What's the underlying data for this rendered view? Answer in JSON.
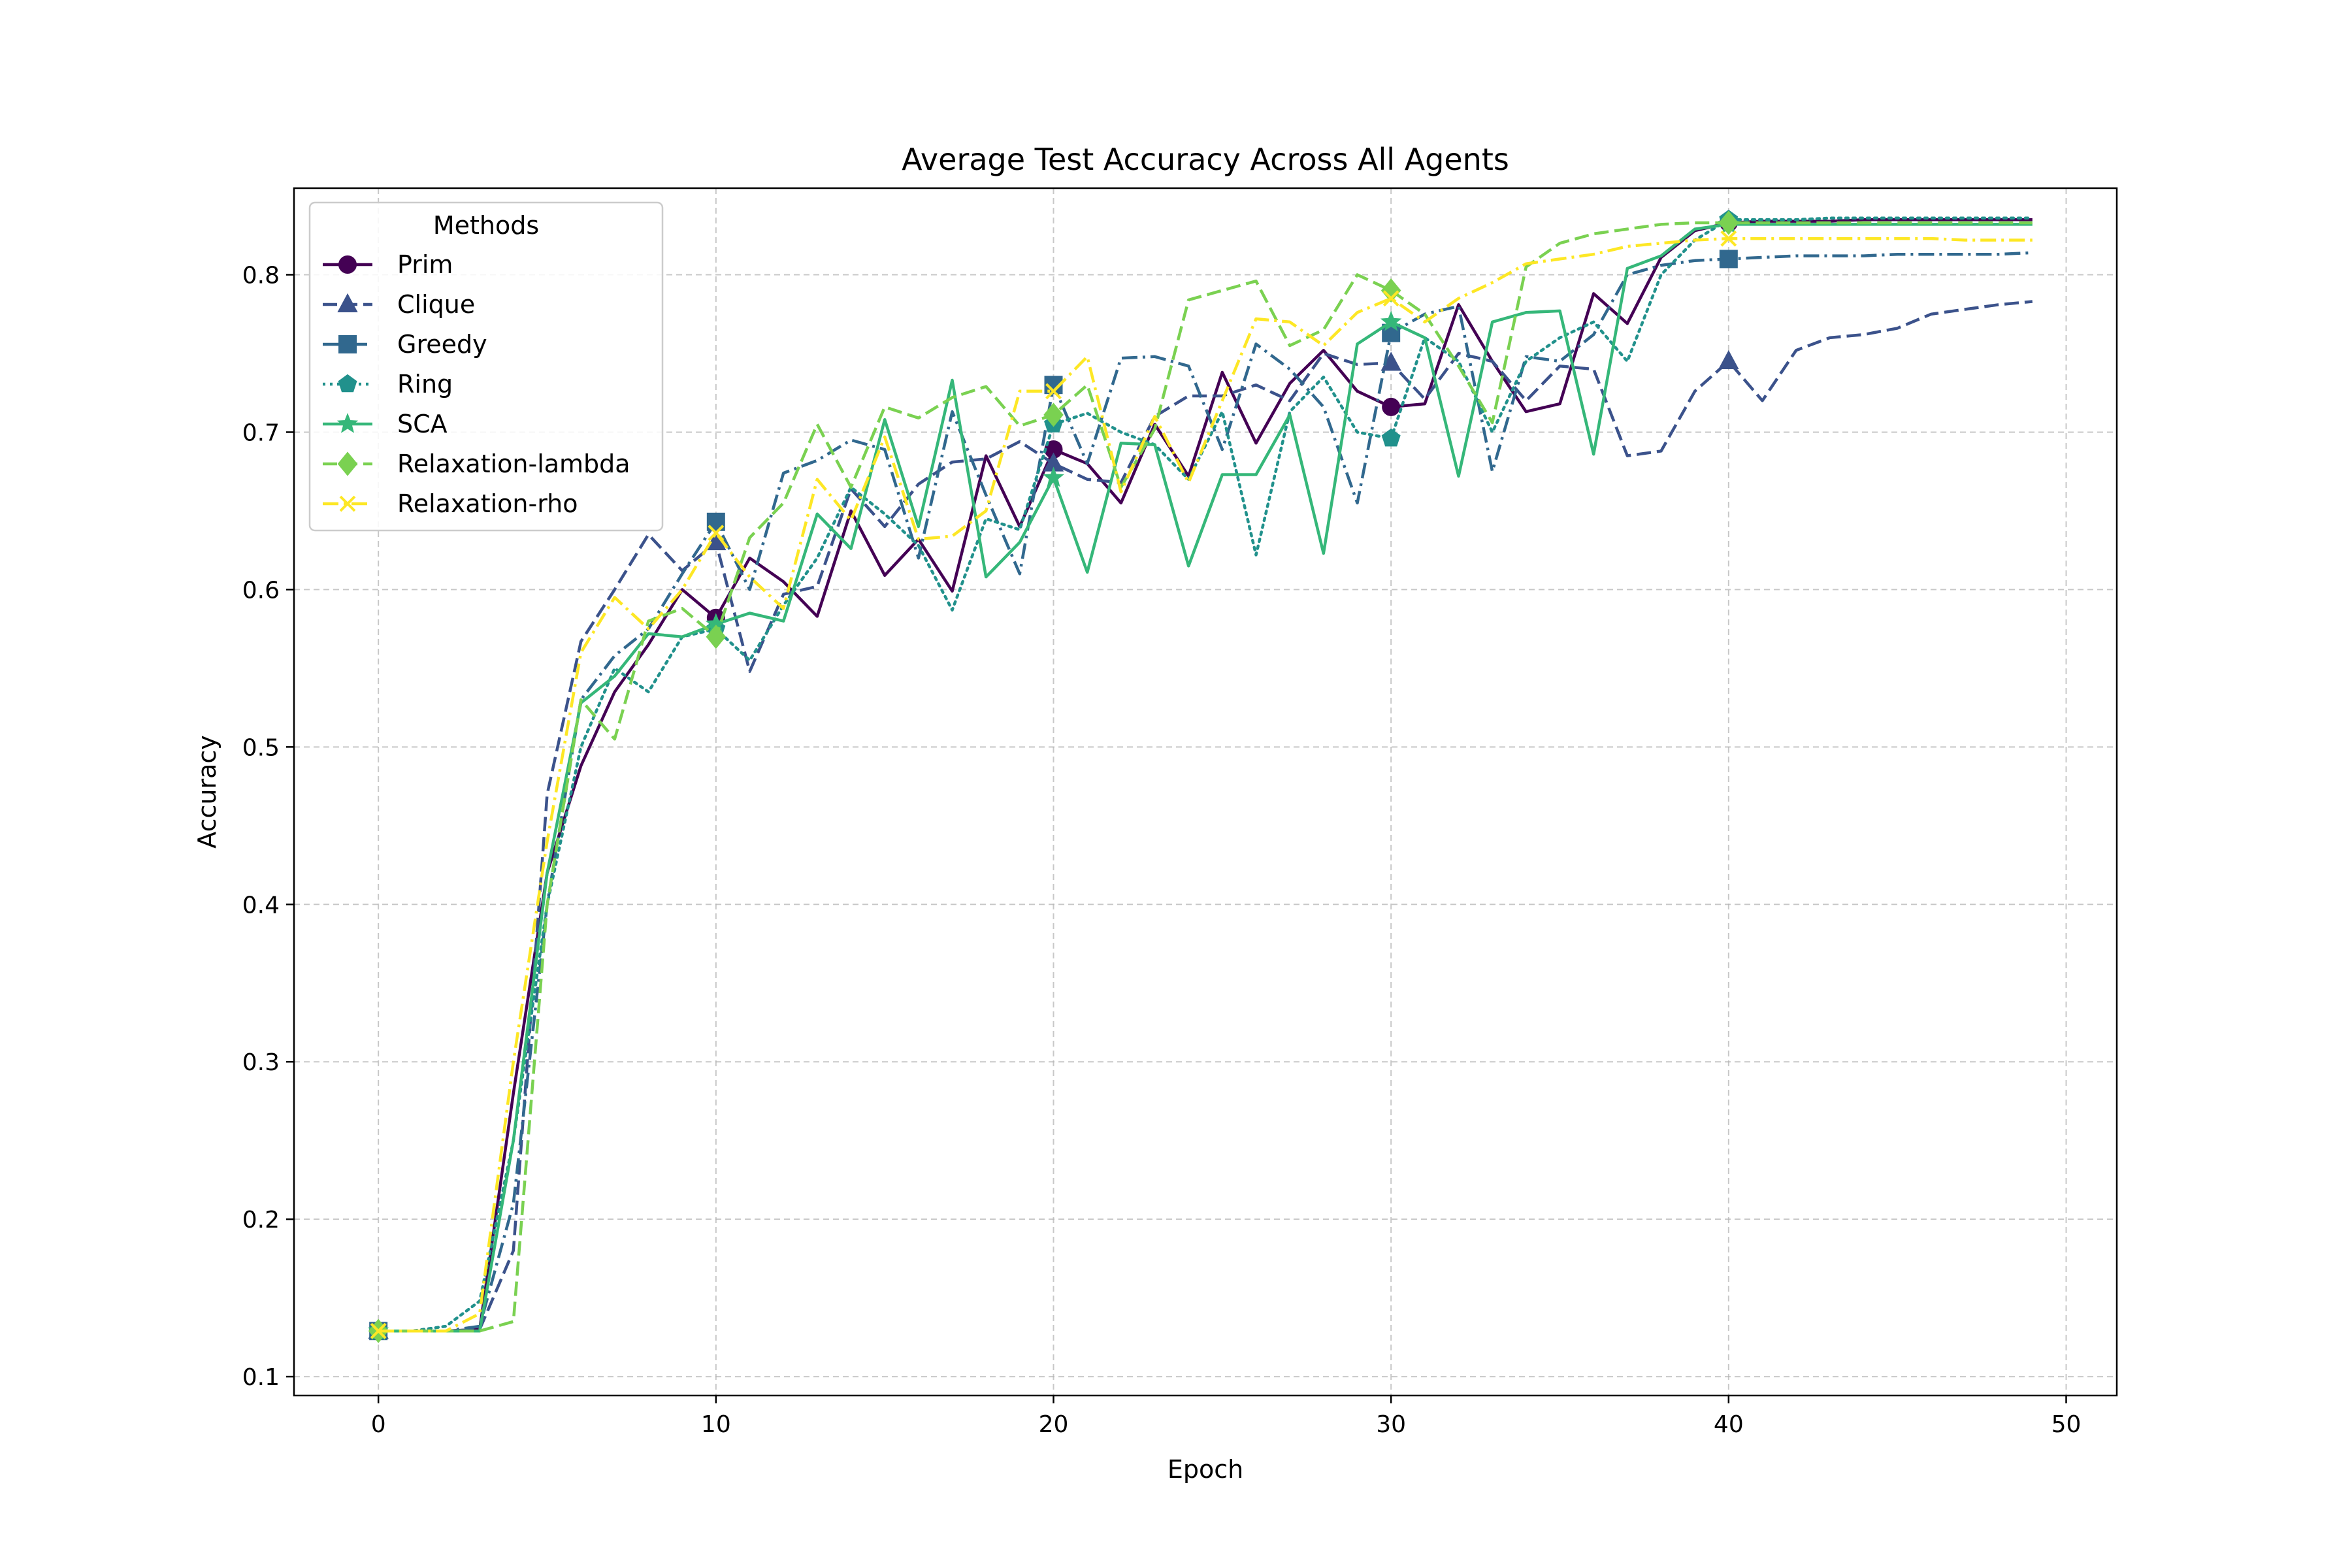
{
  "chart_data": {
    "type": "line",
    "title": "Average Test Accuracy Across All Agents",
    "xlabel": "Epoch",
    "ylabel": "Accuracy",
    "xlim": [
      -2.5,
      51.5
    ],
    "ylim": [
      0.088,
      0.855
    ],
    "xticks": [
      0,
      10,
      20,
      30,
      40,
      50
    ],
    "yticks": [
      0.1,
      0.2,
      0.3,
      0.4,
      0.5,
      0.6,
      0.7,
      0.8
    ],
    "grid": true,
    "legend": {
      "title": "Methods",
      "position": "top-left"
    },
    "x": [
      0,
      1,
      2,
      3,
      4,
      5,
      6,
      7,
      8,
      9,
      10,
      11,
      12,
      13,
      14,
      15,
      16,
      17,
      18,
      19,
      20,
      21,
      22,
      23,
      24,
      25,
      26,
      27,
      28,
      29,
      30,
      31,
      32,
      33,
      34,
      35,
      36,
      37,
      38,
      39,
      40,
      41,
      42,
      43,
      44,
      45,
      46,
      47,
      48,
      49
    ],
    "marker_every": 10,
    "series": [
      {
        "name": "Prim",
        "color": "#440154",
        "dash": "solid",
        "marker": "circle",
        "values": [
          0.129,
          0.129,
          0.129,
          0.13,
          0.28,
          0.42,
          0.488,
          0.535,
          0.565,
          0.6,
          0.582,
          0.62,
          0.605,
          0.583,
          0.65,
          0.609,
          0.632,
          0.599,
          0.685,
          0.64,
          0.689,
          0.68,
          0.655,
          0.705,
          0.672,
          0.738,
          0.693,
          0.731,
          0.752,
          0.726,
          0.716,
          0.718,
          0.781,
          0.745,
          0.713,
          0.718,
          0.788,
          0.769,
          0.811,
          0.828,
          0.833,
          0.834,
          0.834,
          0.834,
          0.835,
          0.835,
          0.835,
          0.835,
          0.835,
          0.835
        ]
      },
      {
        "name": "Clique",
        "color": "#3b528b",
        "dash": "dashed",
        "marker": "triangle",
        "values": [
          0.129,
          0.129,
          0.129,
          0.13,
          0.18,
          0.47,
          0.567,
          0.6,
          0.635,
          0.612,
          0.63,
          0.548,
          0.597,
          0.602,
          0.664,
          0.64,
          0.667,
          0.681,
          0.683,
          0.694,
          0.68,
          0.67,
          0.668,
          0.71,
          0.723,
          0.723,
          0.73,
          0.72,
          0.75,
          0.743,
          0.744,
          0.721,
          0.75,
          0.745,
          0.72,
          0.742,
          0.74,
          0.685,
          0.688,
          0.726,
          0.745,
          0.72,
          0.752,
          0.76,
          0.762,
          0.766,
          0.775,
          0.778,
          0.781,
          0.783
        ]
      },
      {
        "name": "Greedy",
        "color": "#31688e",
        "dash": "dashdot",
        "marker": "square",
        "values": [
          0.129,
          0.129,
          0.129,
          0.132,
          0.21,
          0.4,
          0.53,
          0.558,
          0.575,
          0.61,
          0.643,
          0.6,
          0.674,
          0.682,
          0.695,
          0.689,
          0.62,
          0.713,
          0.66,
          0.61,
          0.73,
          0.68,
          0.747,
          0.748,
          0.742,
          0.689,
          0.756,
          0.74,
          0.716,
          0.655,
          0.763,
          0.775,
          0.78,
          0.675,
          0.748,
          0.745,
          0.762,
          0.8,
          0.806,
          0.809,
          0.81,
          0.811,
          0.812,
          0.812,
          0.812,
          0.813,
          0.813,
          0.813,
          0.813,
          0.814
        ]
      },
      {
        "name": "Ring",
        "color": "#21918c",
        "dash": "dotted",
        "marker": "pentagon",
        "values": [
          0.129,
          0.129,
          0.132,
          0.148,
          0.25,
          0.4,
          0.5,
          0.55,
          0.535,
          0.57,
          0.575,
          0.555,
          0.59,
          0.62,
          0.665,
          0.648,
          0.628,
          0.587,
          0.645,
          0.638,
          0.705,
          0.712,
          0.7,
          0.692,
          0.67,
          0.713,
          0.622,
          0.713,
          0.735,
          0.7,
          0.696,
          0.76,
          0.745,
          0.7,
          0.745,
          0.76,
          0.77,
          0.745,
          0.8,
          0.822,
          0.835,
          0.835,
          0.835,
          0.836,
          0.836,
          0.836,
          0.836,
          0.836,
          0.836,
          0.836
        ]
      },
      {
        "name": "SCA",
        "color": "#35b779",
        "dash": "solid",
        "marker": "star",
        "values": [
          0.129,
          0.129,
          0.129,
          0.129,
          0.25,
          0.42,
          0.528,
          0.545,
          0.572,
          0.57,
          0.578,
          0.585,
          0.58,
          0.648,
          0.626,
          0.708,
          0.64,
          0.733,
          0.608,
          0.63,
          0.671,
          0.611,
          0.693,
          0.692,
          0.615,
          0.673,
          0.673,
          0.711,
          0.623,
          0.756,
          0.77,
          0.76,
          0.672,
          0.77,
          0.776,
          0.777,
          0.686,
          0.804,
          0.812,
          0.829,
          0.832,
          0.832,
          0.832,
          0.832,
          0.832,
          0.832,
          0.832,
          0.832,
          0.832,
          0.832
        ]
      },
      {
        "name": "Relaxation-lambda",
        "color": "#7ad151",
        "dash": "dashed",
        "marker": "diamond",
        "values": [
          0.129,
          0.129,
          0.129,
          0.129,
          0.135,
          0.4,
          0.53,
          0.505,
          0.58,
          0.588,
          0.57,
          0.633,
          0.655,
          0.705,
          0.665,
          0.716,
          0.709,
          0.722,
          0.729,
          0.704,
          0.711,
          0.73,
          0.665,
          0.702,
          0.784,
          0.79,
          0.796,
          0.755,
          0.765,
          0.8,
          0.79,
          0.775,
          0.742,
          0.706,
          0.805,
          0.82,
          0.826,
          0.829,
          0.832,
          0.833,
          0.833,
          0.833,
          0.833,
          0.833,
          0.833,
          0.833,
          0.833,
          0.833,
          0.833,
          0.833
        ]
      },
      {
        "name": "Relaxation-rho",
        "color": "#fde725",
        "dash": "dashdot",
        "marker": "x",
        "values": [
          0.129,
          0.129,
          0.129,
          0.14,
          0.3,
          0.44,
          0.56,
          0.595,
          0.575,
          0.6,
          0.636,
          0.608,
          0.588,
          0.67,
          0.644,
          0.697,
          0.632,
          0.634,
          0.65,
          0.726,
          0.726,
          0.748,
          0.662,
          0.71,
          0.668,
          0.72,
          0.772,
          0.77,
          0.755,
          0.776,
          0.785,
          0.77,
          0.785,
          0.795,
          0.807,
          0.81,
          0.813,
          0.818,
          0.82,
          0.822,
          0.823,
          0.823,
          0.823,
          0.823,
          0.823,
          0.823,
          0.823,
          0.822,
          0.822,
          0.822
        ]
      }
    ]
  }
}
